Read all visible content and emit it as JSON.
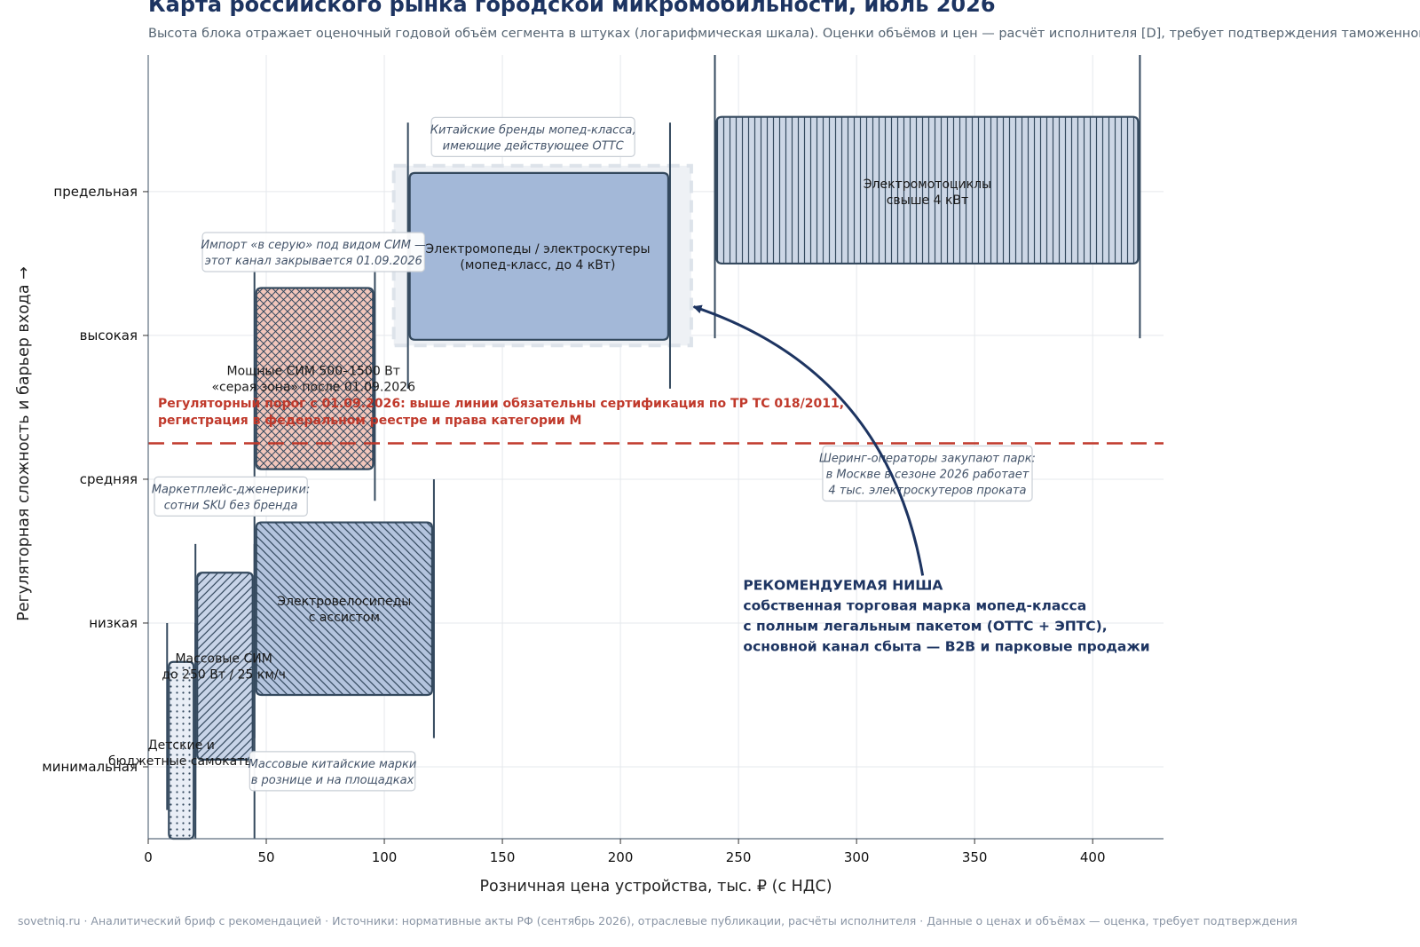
{
  "title": "Карта российского рынка городской микромобильности, июль 2026",
  "subtitle": "Высота блока отражает оценочный годовой объём сегмента в штуках (логарифмическая шкала). Оценки объёмов и цен — расчёт исполнителя [D], требует подтверждения таможенной статистикой",
  "footer": "sovetniq.ru · Аналитический бриф с рекомендацией · Источники: нормативные акты РФ (сентябрь 2026), отраслевые публикации, расчёты исполнителя · Данные о ценах и объёмах — оценка, требует подтверждения",
  "colors": {
    "title": "#1d3461",
    "regulatory_line": "#c0392b",
    "box_stroke": "#34495e",
    "grid": "#e5e8ec",
    "arrow": "#1d3461"
  },
  "chart_data": {
    "type": "marimekko-like box map",
    "xlabel": "Розничная цена устройства, тыс. ₽ (с НДС)",
    "ylabel": "Регуляторная сложность и барьер входа →",
    "xlim": [
      0,
      430
    ],
    "x_ticks": [
      0,
      50,
      100,
      150,
      200,
      250,
      300,
      350,
      400
    ],
    "ylim": [
      -0.5,
      4.95
    ],
    "y_ticks": [
      {
        "value": 0,
        "label": "минимальная"
      },
      {
        "value": 1,
        "label": "низкая"
      },
      {
        "value": 2,
        "label": "средняя"
      },
      {
        "value": 3,
        "label": "высокая"
      },
      {
        "value": 4,
        "label": "предельная"
      }
    ],
    "grid": true,
    "segments": [
      {
        "label": "Детские и бюджетные самокаты",
        "x_min": 8,
        "x_max": 20,
        "y_min": -0.5,
        "y_max": 0.73,
        "whisker": [
          -0.3,
          1.0
        ],
        "hatch": "dots",
        "fill": "#e9eef6",
        "label_x": 14,
        "label_y": 0.1
      },
      {
        "label": "Массовые СИМ до 250 Вт / 25 км/ч",
        "x_min": 20,
        "x_max": 45,
        "y_min": 0.05,
        "y_max": 1.35,
        "whisker": [
          -0.5,
          1.55
        ],
        "hatch": "diagonal",
        "fill": "#c8d4e8",
        "label_x": 32,
        "label_y": 0.7
      },
      {
        "label": "Электровелосипеды с ассистом",
        "x_min": 45,
        "x_max": 121,
        "y_min": 0.5,
        "y_max": 1.7,
        "whisker": [
          0.2,
          2.0
        ],
        "hatch": "back-diagonal",
        "fill": "#b4c4de",
        "label_x": 83,
        "label_y": 1.1
      },
      {
        "label": "Мощные СИМ 500–1500 Вт «серая зона» после 01.09.2026",
        "x_min": 45,
        "x_max": 96,
        "y_min": 2.07,
        "y_max": 3.33,
        "whisker": [
          1.85,
          3.5
        ],
        "hatch": "crosshatch",
        "fill": "#f2c6bb",
        "label_x": 70,
        "label_y": 2.7
      },
      {
        "label": "Электромопеды / электроскутеры (мопед-класс, до 4 кВт)",
        "x_min": 110,
        "x_max": 221,
        "y_min": 2.97,
        "y_max": 4.13,
        "whisker": [
          2.63,
          4.48
        ],
        "hatch": "none",
        "fill": "#a3b8d8",
        "label_x": 165,
        "label_y": 3.55
      },
      {
        "label": "Электромотоциклы свыше 4 кВт",
        "x_min": 240,
        "x_max": 420,
        "y_min": 3.5,
        "y_max": 4.52,
        "whisker": [
          2.98,
          4.95
        ],
        "hatch": "vertical",
        "fill": "#cdd7e6",
        "label_x": 330,
        "label_y": 4.0
      }
    ],
    "regulatory_threshold": {
      "y": 2.25,
      "text_line1": "Регуляторный порог с 01.09.2026: выше линии обязательны сертификация по ТР ТС 018/2011,",
      "text_line2": "регистрация в федеральном реестре и права категории М"
    },
    "highlight_box": {
      "x_min": 104,
      "x_max": 230,
      "y_min": 2.93,
      "y_max": 4.18
    },
    "annotations": [
      {
        "id": "otts",
        "lines": [
          "Китайские бренды мопед-класса,",
          "имеющие действующее ОТТС"
        ],
        "x": 163,
        "y": 4.38
      },
      {
        "id": "grey-import",
        "lines": [
          "Импорт «в серую» под видом СИМ —",
          "этот канал закрывается 01.09.2026"
        ],
        "x": 70,
        "y": 3.58
      },
      {
        "id": "marketplace",
        "lines": [
          "Маркетплейс-дженерики:",
          "сотни SKU без бренда"
        ],
        "x": 35,
        "y": 1.88
      },
      {
        "id": "chinese-mass",
        "lines": [
          "Массовые китайские марки",
          "в рознице и на площадках"
        ],
        "x": 78,
        "y": -0.03
      },
      {
        "id": "sharing",
        "lines": [
          "Шеринг-операторы закупают парк:",
          "в Москве в сезоне 2026 работает",
          "4 тыс. электроскутеров прокатa"
        ],
        "x": 330,
        "y": 2.04
      }
    ],
    "recommendation": {
      "lines": [
        "РЕКОМЕНДУЕМАЯ НИША",
        "собственная торговая марка мопед-класса",
        "с полным легальным пакетом (ОТТС + ЭПТС),",
        "основной канал сбыта — B2B и парковые продажи"
      ],
      "x": 252,
      "y": 1.23,
      "arrow_from": [
        328,
        1.33
      ],
      "arrow_to": [
        231,
        3.2
      ]
    }
  }
}
